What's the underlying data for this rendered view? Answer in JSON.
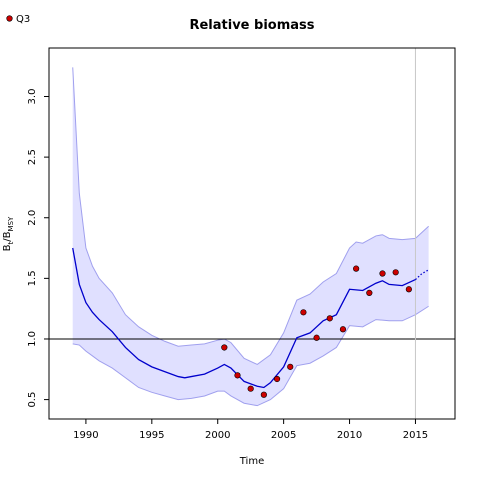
{
  "chart_data": {
    "type": "line",
    "title": "Relative biomass",
    "xlabel": "Time",
    "ylabel": "B_t/B_MSY",
    "xlim": [
      1987.2,
      2018
    ],
    "ylim": [
      0.34,
      3.4
    ],
    "xticks": [
      1990,
      1995,
      2000,
      2005,
      2010,
      2015
    ],
    "xtick_labels": [
      "1990",
      "1995",
      "2000",
      "2005",
      "2010",
      "2015"
    ],
    "yticks": [
      0.5,
      1.0,
      1.5,
      2.0,
      2.5,
      3.0
    ],
    "ytick_labels": [
      "0.5",
      "1.0",
      "1.5",
      "2.0",
      "2.5",
      "3.0"
    ],
    "reference_line_y": 1.0,
    "vertical_line_x": 2015,
    "legend": {
      "position": "top-left",
      "entries": [
        {
          "label": "Q3",
          "marker": "circle",
          "color": "#cc0000"
        }
      ]
    },
    "colors": {
      "estimate": "#0000cc",
      "band_fill": "#e0e0ff",
      "band_edge": "#a0a0ee",
      "points": "#cc0000",
      "reference": "#000000",
      "vline": "#c8c8c8"
    },
    "series": [
      {
        "role": "estimate",
        "style": "solid",
        "x": [
          1989,
          1989.5,
          1990,
          1990.5,
          1991,
          1992,
          1993,
          1994,
          1995,
          1996,
          1997,
          1997.5,
          1998,
          1999,
          2000,
          2000.5,
          2001,
          2002,
          2003,
          2003.5,
          2004,
          2005,
          2006,
          2007,
          2008,
          2009,
          2010,
          2011,
          2012,
          2012.5,
          2013,
          2014,
          2015
        ],
        "y": [
          1.75,
          1.45,
          1.3,
          1.22,
          1.16,
          1.06,
          0.93,
          0.83,
          0.77,
          0.73,
          0.69,
          0.68,
          0.69,
          0.71,
          0.76,
          0.79,
          0.76,
          0.65,
          0.61,
          0.6,
          0.64,
          0.77,
          1.01,
          1.05,
          1.15,
          1.2,
          1.41,
          1.4,
          1.46,
          1.48,
          1.45,
          1.44,
          1.49
        ]
      },
      {
        "role": "projection",
        "style": "dotted",
        "x": [
          2015,
          2015.5,
          2016
        ],
        "y": [
          1.49,
          1.54,
          1.57
        ]
      },
      {
        "role": "upper_bound",
        "x": [
          1989,
          1989.5,
          1990,
          1990.5,
          1991,
          1992,
          1993,
          1994,
          1995,
          1996,
          1997,
          1998,
          1999,
          2000,
          2000.5,
          2001,
          2002,
          2003,
          2004,
          2005,
          2006,
          2007,
          2008,
          2009,
          2010,
          2010.5,
          2011,
          2012,
          2012.5,
          2013,
          2014,
          2015,
          2016
        ],
        "y": [
          3.24,
          2.2,
          1.75,
          1.6,
          1.5,
          1.38,
          1.2,
          1.1,
          1.03,
          0.98,
          0.94,
          0.95,
          0.96,
          0.99,
          1.0,
          0.97,
          0.84,
          0.79,
          0.87,
          1.05,
          1.32,
          1.37,
          1.47,
          1.54,
          1.75,
          1.8,
          1.79,
          1.85,
          1.86,
          1.83,
          1.82,
          1.83,
          1.93
        ]
      },
      {
        "role": "lower_bound",
        "x": [
          1989,
          1989.5,
          1990,
          1990.5,
          1991,
          1992,
          1993,
          1994,
          1995,
          1996,
          1997,
          1998,
          1999,
          2000,
          2000.5,
          2001,
          2002,
          2003,
          2004,
          2005,
          2006,
          2007,
          2008,
          2009,
          2010,
          2011,
          2012,
          2013,
          2014,
          2015,
          2016
        ],
        "y": [
          0.96,
          0.95,
          0.9,
          0.86,
          0.82,
          0.76,
          0.68,
          0.6,
          0.56,
          0.53,
          0.5,
          0.51,
          0.53,
          0.57,
          0.57,
          0.53,
          0.47,
          0.45,
          0.5,
          0.59,
          0.78,
          0.8,
          0.86,
          0.93,
          1.11,
          1.1,
          1.16,
          1.15,
          1.15,
          1.2,
          1.27
        ]
      },
      {
        "name": "Q3",
        "role": "observations",
        "x": [
          2000.5,
          2001.5,
          2002.5,
          2003.5,
          2004.5,
          2005.5,
          2006.5,
          2007.5,
          2008.5,
          2009.5,
          2010.5,
          2011.5,
          2012.5,
          2013.5,
          2014.5
        ],
        "y": [
          0.93,
          0.7,
          0.59,
          0.54,
          0.67,
          0.77,
          1.22,
          1.01,
          1.17,
          1.08,
          1.58,
          1.38,
          1.54,
          1.55,
          1.41
        ]
      }
    ]
  }
}
